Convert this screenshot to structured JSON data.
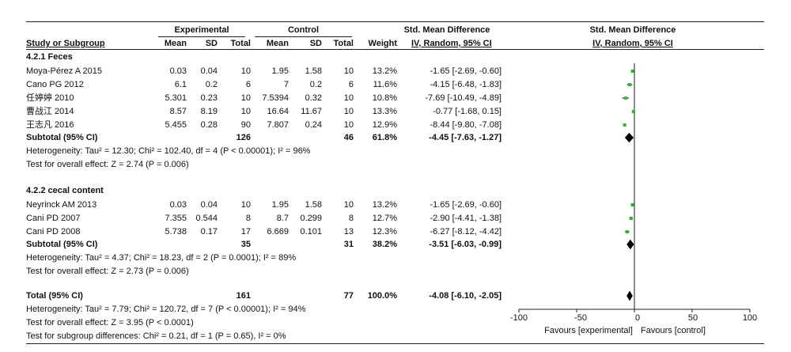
{
  "header": {
    "group_experimental": "Experimental",
    "group_control": "Control",
    "effect_title": "Std. Mean Difference",
    "plot_title": "Std. Mean Difference",
    "col_study": "Study or Subgroup",
    "col_mean_e": "Mean",
    "col_sd_e": "SD",
    "col_total_e": "Total",
    "col_mean_c": "Mean",
    "col_sd_c": "SD",
    "col_total_c": "Total",
    "col_weight": "Weight",
    "col_method": "IV, Random, 95% CI",
    "plot_method": "IV, Random, 95% CI"
  },
  "subgroups": [
    {
      "title": "4.2.1 Feces",
      "studies": [
        {
          "name": "Moya-Pérez A 2015",
          "mean_e": "0.03",
          "sd_e": "0.04",
          "n_e": "10",
          "mean_c": "1.95",
          "sd_c": "1.58",
          "n_c": "10",
          "weight": "13.2%",
          "ci_text": "-1.65 [-2.69, -0.60]"
        },
        {
          "name": "Cano PG 2012",
          "mean_e": "6.1",
          "sd_e": "0.2",
          "n_e": "6",
          "mean_c": "7",
          "sd_c": "0.2",
          "n_c": "6",
          "weight": "11.6%",
          "ci_text": "-4.15 [-6.48, -1.83]"
        },
        {
          "name": "任婷婷 2010",
          "mean_e": "5.301",
          "sd_e": "0.23",
          "n_e": "10",
          "mean_c": "7.5394",
          "sd_c": "0.32",
          "n_c": "10",
          "weight": "10.8%",
          "ci_text": "-7.69 [-10.49, -4.89]"
        },
        {
          "name": "曹战江 2014",
          "mean_e": "8.57",
          "sd_e": "8.19",
          "n_e": "10",
          "mean_c": "16.64",
          "sd_c": "11.67",
          "n_c": "10",
          "weight": "13.3%",
          "ci_text": "-0.77 [-1.68, 0.15]"
        },
        {
          "name": "王志凡 2016",
          "mean_e": "5.455",
          "sd_e": "0.28",
          "n_e": "90",
          "mean_c": "7.807",
          "sd_c": "0.24",
          "n_c": "10",
          "weight": "12.9%",
          "ci_text": "-8.44 [-9.80, -7.08]"
        }
      ],
      "subtotal": {
        "label": "Subtotal (95% CI)",
        "n_e": "126",
        "n_c": "46",
        "weight": "61.8%",
        "ci_text": "-4.45 [-7.63, -1.27]"
      },
      "heterogeneity": "Heterogeneity: Tau² = 12.30; Chi² = 102.40, df = 4 (P < 0.00001); I² = 96%",
      "overall": "Test for overall effect: Z = 2.74 (P = 0.006)"
    },
    {
      "title": "4.2.2 cecal content",
      "studies": [
        {
          "name": "Neyrinck AM 2013",
          "mean_e": "0.03",
          "sd_e": "0.04",
          "n_e": "10",
          "mean_c": "1.95",
          "sd_c": "1.58",
          "n_c": "10",
          "weight": "13.2%",
          "ci_text": "-1.65 [-2.69, -0.60]"
        },
        {
          "name": "Cani PD 2007",
          "mean_e": "7.355",
          "sd_e": "0.544",
          "n_e": "8",
          "mean_c": "8.7",
          "sd_c": "0.299",
          "n_c": "8",
          "weight": "12.7%",
          "ci_text": "-2.90 [-4.41, -1.38]"
        },
        {
          "name": "Cani PD 2008",
          "mean_e": "5.738",
          "sd_e": "0.17",
          "n_e": "17",
          "mean_c": "6.669",
          "sd_c": "0.101",
          "n_c": "13",
          "weight": "12.3%",
          "ci_text": "-6.27 [-8.12, -4.42]"
        }
      ],
      "subtotal": {
        "label": "Subtotal (95% CI)",
        "n_e": "35",
        "n_c": "31",
        "weight": "38.2%",
        "ci_text": "-3.51 [-6.03, -0.99]"
      },
      "heterogeneity": "Heterogeneity: Tau² = 4.37; Chi² = 18.23, df = 2 (P = 0.0001); I² = 89%",
      "overall": "Test for overall effect: Z = 2.73 (P = 0.006)"
    }
  ],
  "total": {
    "label": "Total (95% CI)",
    "n_e": "161",
    "n_c": "77",
    "weight": "100.0%",
    "ci_text": "-4.08 [-6.10, -2.05]",
    "heterogeneity": "Heterogeneity: Tau² = 7.79; Chi² = 120.72, df = 7 (P < 0.00001); I² = 94%",
    "overall": "Test for overall effect: Z = 3.95 (P < 0.0001)",
    "subgroup_diff": "Test for subgroup differences: Chi² = 0.21, df = 1 (P = 0.65), I² = 0%"
  },
  "colors": {
    "study_square": "#2eb82e",
    "diamond": "#000000"
  },
  "chart_data": {
    "type": "forest",
    "xlim": [
      -100,
      100
    ],
    "xticks": [
      "-100",
      "-50",
      "0",
      "50",
      "100"
    ],
    "xlabel_left": "Favours [experimental]",
    "xlabel_right": "Favours [control]",
    "studies": [
      {
        "name": "Moya-Pérez A 2015",
        "est": -1.65,
        "lo": -2.69,
        "hi": -0.6,
        "weight": 13.2
      },
      {
        "name": "Cano PG 2012",
        "est": -4.15,
        "lo": -6.48,
        "hi": -1.83,
        "weight": 11.6
      },
      {
        "name": "任婷婷 2010",
        "est": -7.69,
        "lo": -10.49,
        "hi": -4.89,
        "weight": 10.8
      },
      {
        "name": "曹战江 2014",
        "est": -0.77,
        "lo": -1.68,
        "hi": 0.15,
        "weight": 13.3
      },
      {
        "name": "王志凡 2016",
        "est": -8.44,
        "lo": -9.8,
        "hi": -7.08,
        "weight": 12.9
      },
      {
        "name": "Neyrinck AM 2013",
        "est": -1.65,
        "lo": -2.69,
        "hi": -0.6,
        "weight": 13.2
      },
      {
        "name": "Cani PD 2007",
        "est": -2.9,
        "lo": -4.41,
        "hi": -1.38,
        "weight": 12.7
      },
      {
        "name": "Cani PD 2008",
        "est": -6.27,
        "lo": -8.12,
        "hi": -4.42,
        "weight": 12.3
      }
    ],
    "summaries": [
      {
        "name": "Subtotal (95% CI)",
        "est": -4.45,
        "lo": -7.63,
        "hi": -1.27
      },
      {
        "name": "Subtotal (95% CI)",
        "est": -3.51,
        "lo": -6.03,
        "hi": -0.99
      },
      {
        "name": "Total (95% CI)",
        "est": -4.08,
        "lo": -6.1,
        "hi": -2.05
      }
    ]
  }
}
